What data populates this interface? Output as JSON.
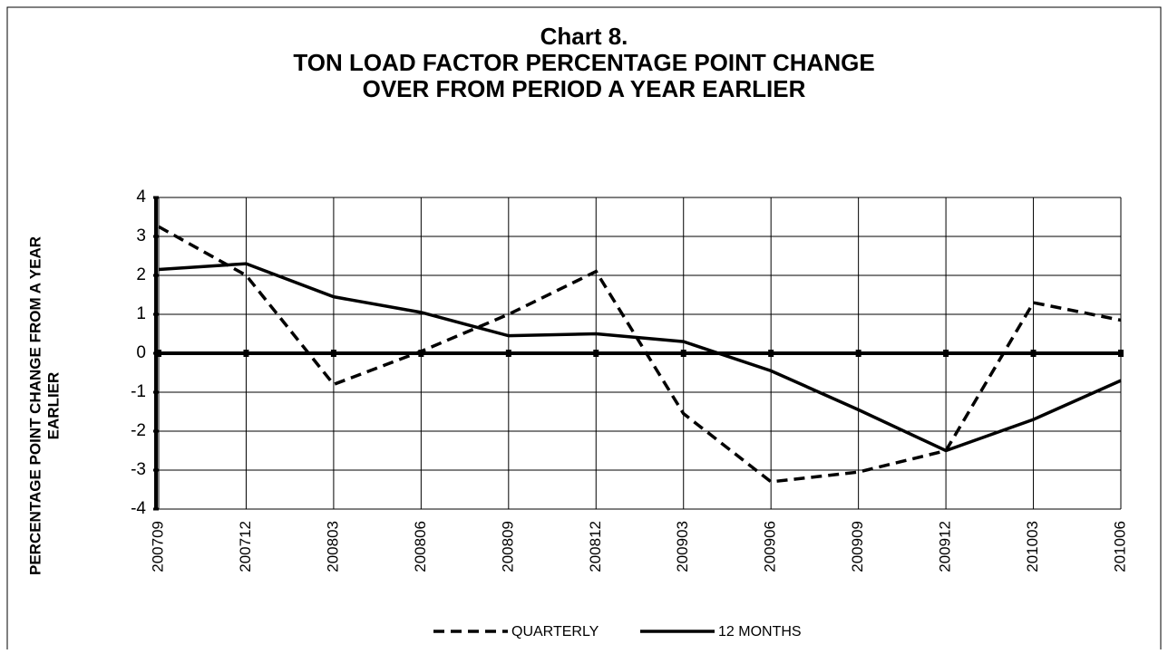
{
  "chart_data": {
    "type": "line",
    "title_lines": [
      "Chart 8.",
      "TON LOAD FACTOR PERCENTAGE POINT CHANGE",
      "OVER FROM PERIOD A YEAR EARLIER"
    ],
    "y_label": [
      "PERCENTAGE POINT CHANGE FROM A YEAR",
      "EARLIER"
    ],
    "categories": [
      "200709",
      "200712",
      "200803",
      "200806",
      "200809",
      "200812",
      "200903",
      "200906",
      "200909",
      "200912",
      "201003",
      "201006"
    ],
    "series": [
      {
        "name": "QUARTERLY",
        "color": "#000000",
        "dashed": true,
        "values": [
          3.25,
          2.0,
          -0.8,
          0.05,
          1.0,
          2.1,
          -1.55,
          -3.3,
          -3.05,
          -2.5,
          1.3,
          0.85
        ]
      },
      {
        "name": "12 MONTHS",
        "color": "#000000",
        "dashed": false,
        "values": [
          2.15,
          2.3,
          1.45,
          1.05,
          0.45,
          0.5,
          0.3,
          -0.45,
          -1.45,
          -2.5,
          -1.7,
          -0.7
        ]
      }
    ],
    "ylim": [
      -4,
      4
    ],
    "yticks": [
      -4,
      -3,
      -2,
      -1,
      0,
      1,
      2,
      3,
      4
    ],
    "grid": true
  }
}
